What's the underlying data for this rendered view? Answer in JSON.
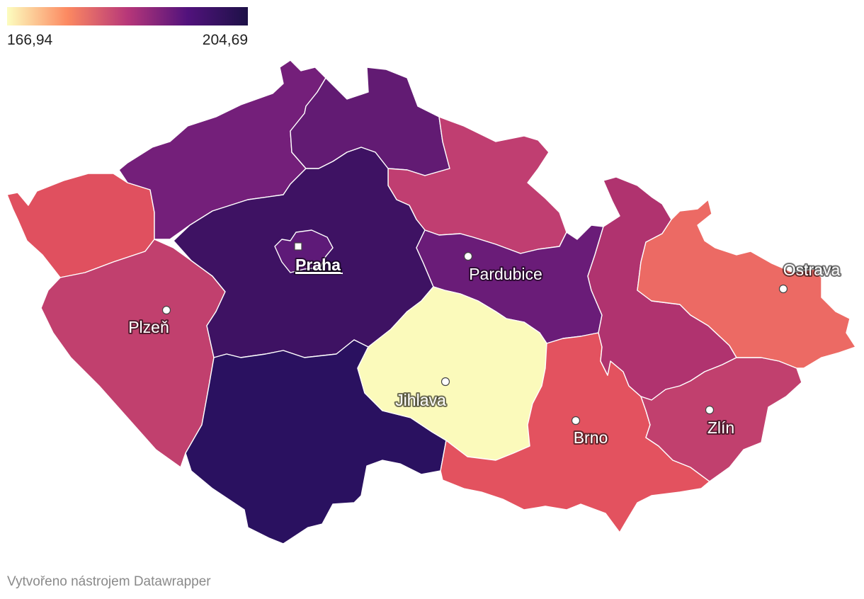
{
  "legend": {
    "min_label": "166,94",
    "max_label": "204,69",
    "min": 166.94,
    "max": 204.69,
    "gradient": [
      "#fcfdbf",
      "#fc8961",
      "#b73779",
      "#51127c",
      "#1d1147"
    ]
  },
  "regions": [
    {
      "id": "praha",
      "color": "#5e1a78"
    },
    {
      "id": "stredocesky",
      "color": "#3e1263"
    },
    {
      "id": "jihocesky",
      "color": "#2a1160"
    },
    {
      "id": "plzensky",
      "color": "#c1406e"
    },
    {
      "id": "karlovarsky",
      "color": "#e0505f"
    },
    {
      "id": "ustecky",
      "color": "#741f7a"
    },
    {
      "id": "liberecky",
      "color": "#621b73"
    },
    {
      "id": "kralovehradecky",
      "color": "#c03e71"
    },
    {
      "id": "pardubicky",
      "color": "#6a1c78"
    },
    {
      "id": "vysocina",
      "color": "#fbfabb"
    },
    {
      "id": "jihomoravsky",
      "color": "#e3525f"
    },
    {
      "id": "olomoucky",
      "color": "#b0336f"
    },
    {
      "id": "zlinsky",
      "color": "#c1406e"
    },
    {
      "id": "moravskoslezsky",
      "color": "#ec6a64"
    }
  ],
  "cities": [
    {
      "name": "Praha",
      "capital": true
    },
    {
      "name": "Plzeň",
      "capital": false
    },
    {
      "name": "Pardubice",
      "capital": false
    },
    {
      "name": "Jihlava",
      "capital": false
    },
    {
      "name": "Brno",
      "capital": false
    },
    {
      "name": "Zlín",
      "capital": false
    },
    {
      "name": "Ostrava",
      "capital": false
    }
  ],
  "footer": "Vytvořeno nástrojem Datawrapper"
}
